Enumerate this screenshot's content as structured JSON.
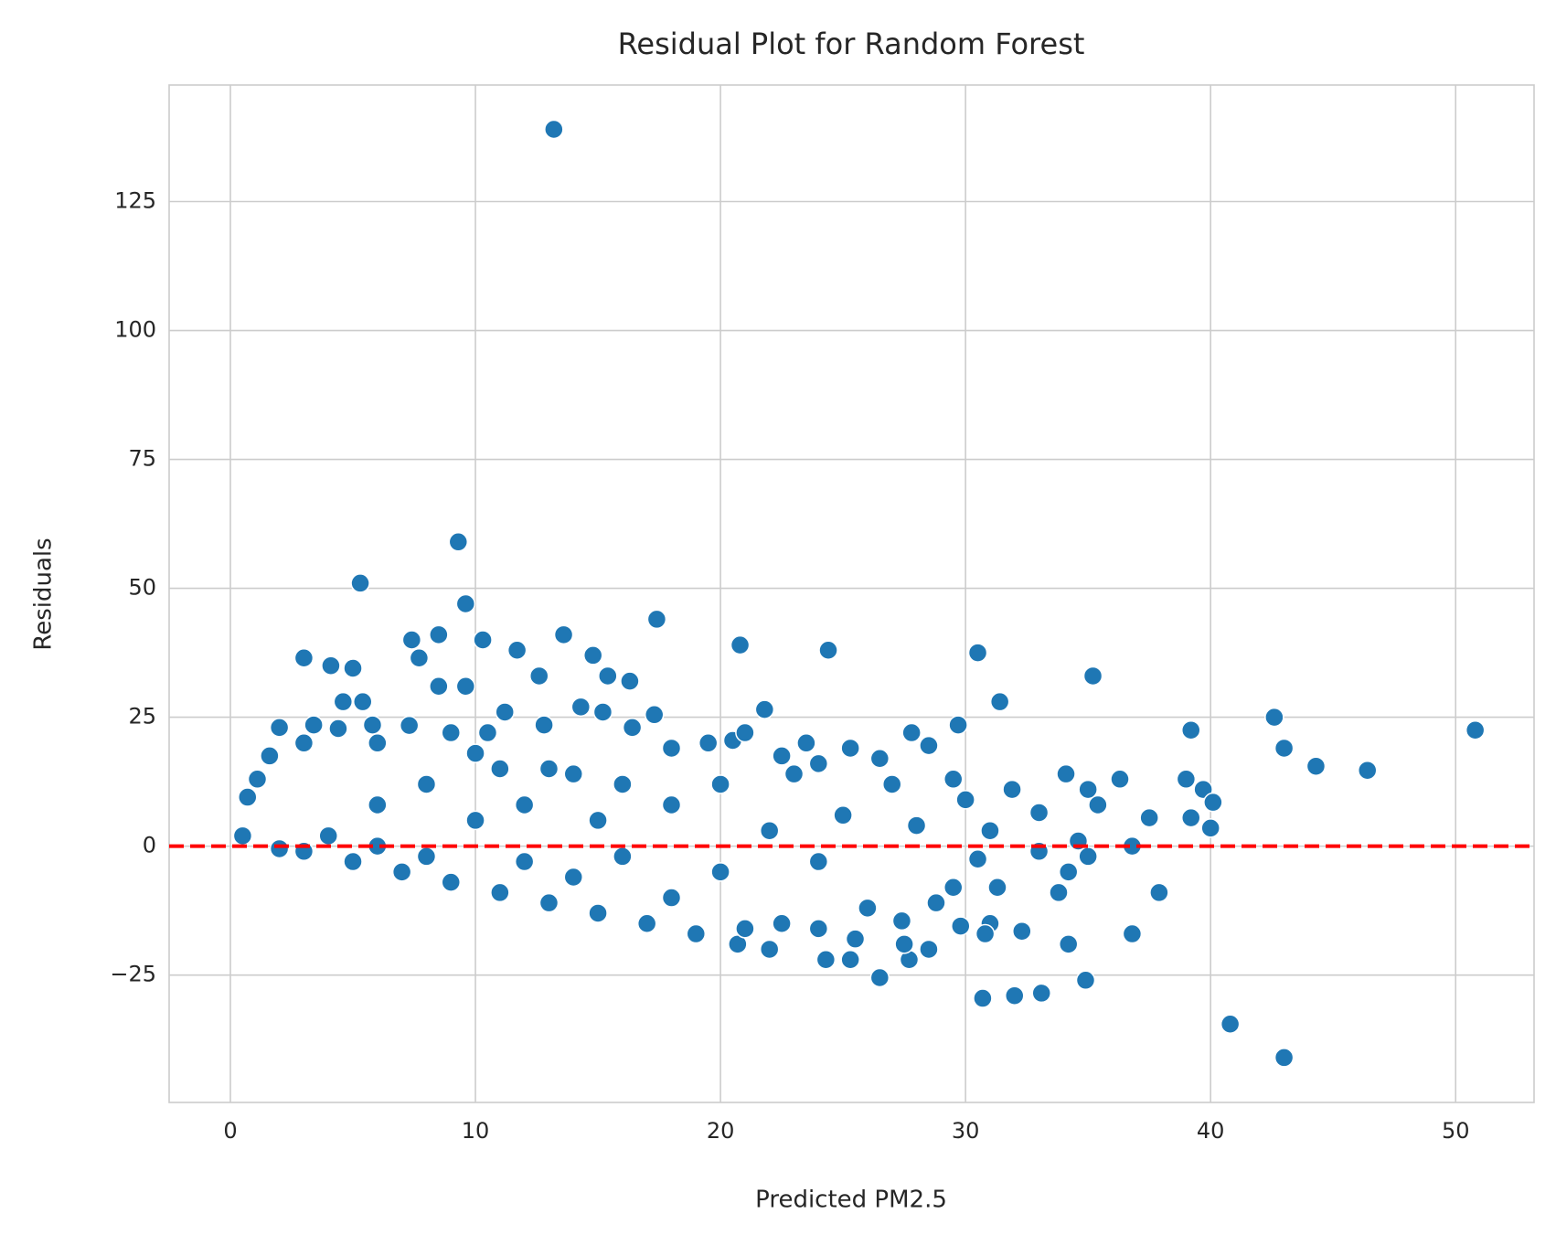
{
  "chart_data": {
    "type": "scatter",
    "title": "Residual Plot for Random Forest",
    "x_label": "Predicted PM2.5",
    "y_label": "Residuals",
    "color": "#1f77b4",
    "grid": true,
    "xlim": [
      -2.5,
      53.2
    ],
    "ylim": [
      -49.7,
      147.6
    ],
    "xticks": [
      0,
      10,
      20,
      30,
      40,
      50
    ],
    "yticks": [
      {
        "value": -25,
        "label": "−25"
      },
      0,
      25,
      50,
      75,
      100,
      125
    ],
    "reference_line": {
      "y": 0,
      "color": "#ff0000"
    },
    "x": [
      13.2,
      9.3,
      5.3,
      9.6,
      17.4,
      13.6,
      8.5,
      7.4,
      10.3,
      20.8,
      24.4,
      11.7,
      30.5,
      7.7,
      3,
      4.1,
      5,
      14.8,
      15.4,
      12.6,
      35.2,
      16.3,
      8.5,
      9.6,
      4.6,
      5.4,
      31.4,
      21.8,
      17.3,
      42.6,
      39.2,
      50.8,
      43,
      44.3,
      46.4,
      36.3,
      39,
      39.7,
      40.1,
      40,
      39.2,
      37.5,
      36.8,
      37.9,
      36.8,
      34.2,
      34.9,
      33.1,
      32,
      30.7,
      40.8,
      43,
      26.5,
      27.7,
      24.3,
      25.3,
      22,
      20.7,
      31.3,
      31,
      30.8,
      29.8,
      28.8,
      27.4,
      32.3,
      33.8,
      34.2,
      31.9,
      34.1,
      35.4,
      29.7,
      27.8,
      22.5,
      23.5,
      25.3,
      19.5,
      0.5,
      0.7,
      1.1,
      1.6,
      2,
      3.4,
      4.4,
      5.8,
      7.3,
      9,
      10.5,
      11.2,
      12.8,
      14.3,
      15.2,
      16.4,
      3,
      6,
      10,
      13,
      16,
      18,
      20.5,
      21,
      23,
      24,
      26.5,
      27,
      28.5,
      29.5,
      30,
      33,
      35,
      34.6,
      2,
      3,
      5,
      7,
      9,
      11,
      13,
      15,
      17,
      19,
      21,
      22.5,
      24,
      25.5,
      26,
      27.5,
      28.5,
      29.5,
      18,
      20,
      14,
      12,
      8,
      6,
      4,
      10,
      12,
      15,
      18,
      22,
      25,
      28,
      31,
      33,
      30.5,
      35,
      24,
      16,
      20,
      14,
      8,
      6,
      11
    ],
    "values": [
      139,
      59,
      51,
      47,
      44,
      41,
      41,
      40,
      40,
      39,
      38,
      38,
      37.5,
      36.5,
      36.5,
      35,
      34.5,
      37,
      33,
      33,
      33,
      32,
      31,
      31,
      28,
      28,
      28,
      26.5,
      25.5,
      25,
      22.5,
      22.5,
      19,
      15.5,
      14.7,
      13,
      13,
      11,
      8.5,
      3.5,
      5.5,
      5.5,
      0,
      -9,
      -17,
      -19,
      -26,
      -28.5,
      -29,
      -29.5,
      -34.5,
      -41,
      -25.5,
      -22,
      -22,
      -22,
      -20,
      -19,
      -8,
      -15,
      -17,
      -15.5,
      -11,
      -14.5,
      -16.5,
      -9,
      -5,
      11,
      14,
      8,
      23.5,
      22,
      17.5,
      20,
      19,
      20,
      2,
      9.5,
      13,
      17.5,
      23,
      23.5,
      22.8,
      23.5,
      23.4,
      22,
      22,
      26,
      23.5,
      27,
      26,
      23,
      20,
      20,
      18,
      15,
      12,
      19,
      20.5,
      22,
      14,
      16,
      17,
      12,
      19.5,
      13,
      9,
      6.5,
      11,
      1,
      -0.5,
      -1,
      -3,
      -5,
      -7,
      -9,
      -11,
      -13,
      -15,
      -17,
      -16,
      -15,
      -16,
      -18,
      -12,
      -19,
      -20,
      -8,
      -10,
      -5,
      -6,
      -3,
      -2,
      0,
      2,
      5,
      8,
      5,
      8,
      3,
      6,
      4,
      3,
      -1,
      -2.5,
      -2,
      -3,
      -2,
      12,
      14,
      12,
      8,
      15
    ]
  }
}
